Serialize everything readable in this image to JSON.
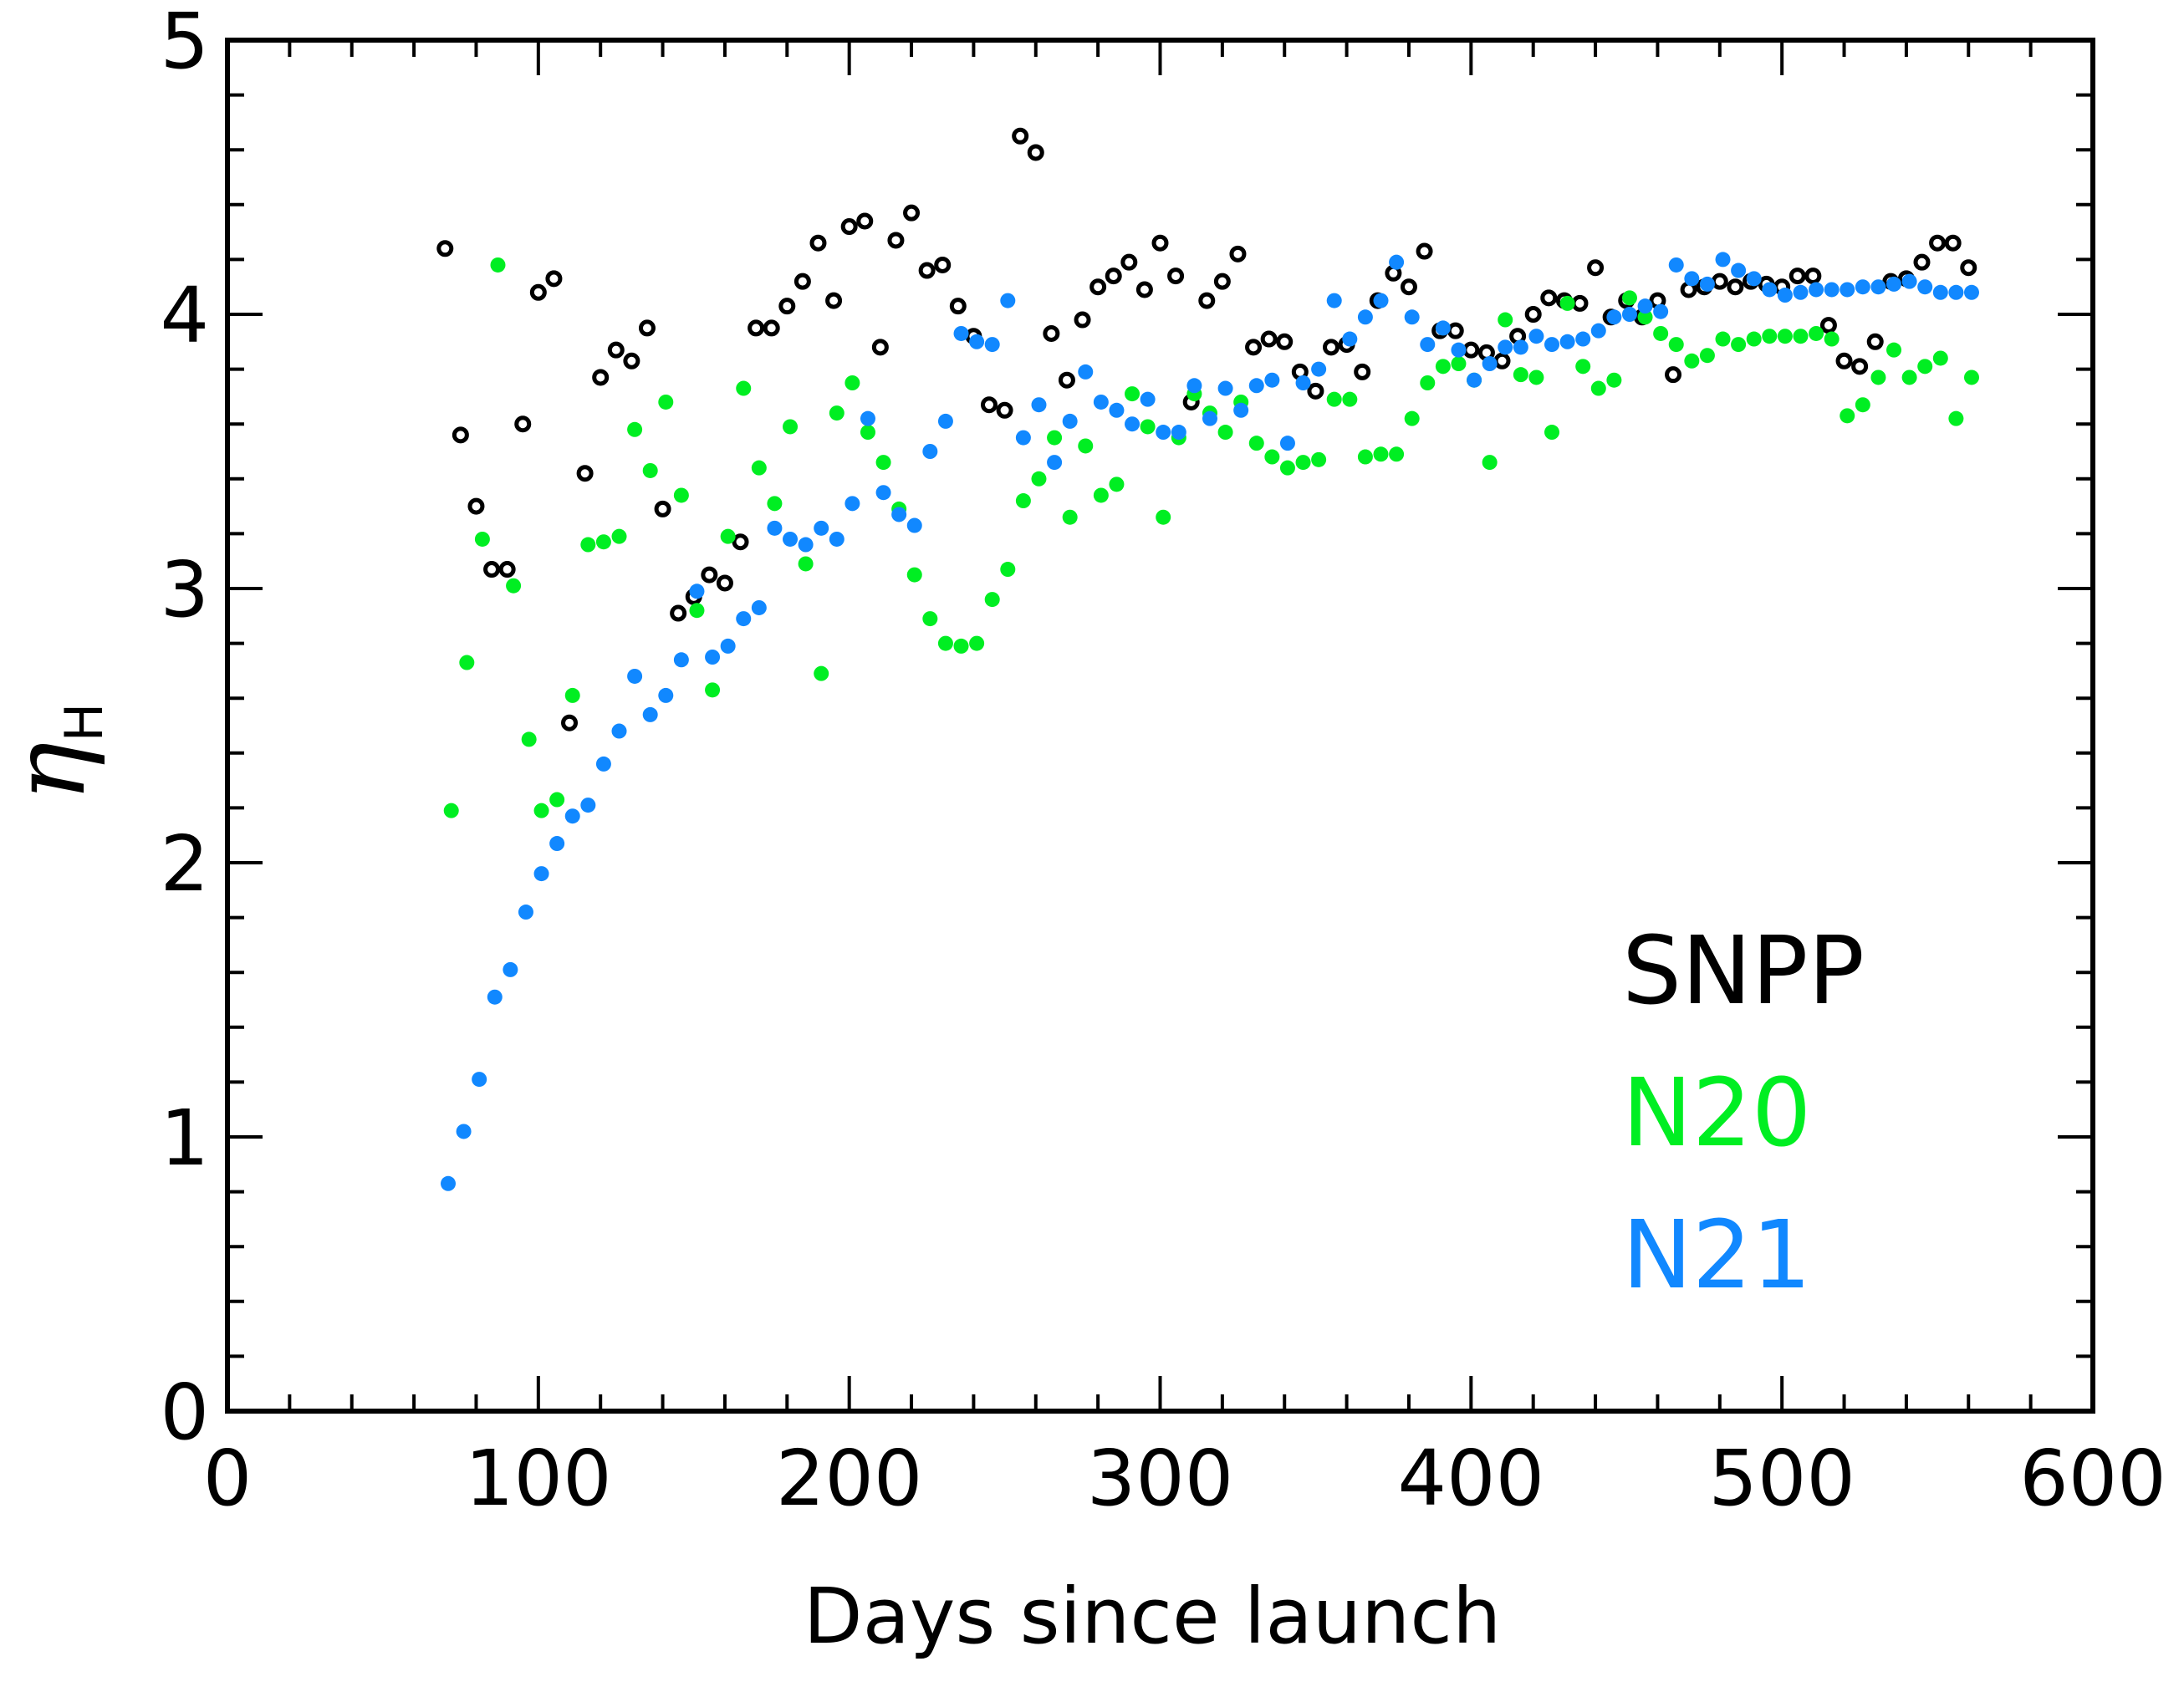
{
  "chart_data": {
    "type": "scatter",
    "title": "",
    "xlabel": "Days since launch",
    "ylabel": {
      "symbol": "η",
      "subscript": "H"
    },
    "xlim": [
      0,
      600
    ],
    "ylim": [
      0,
      5
    ],
    "xticks": [
      "0",
      "100",
      "200",
      "300",
      "400",
      "500",
      "600"
    ],
    "yticks": [
      "0",
      "1",
      "2",
      "3",
      "4",
      "5"
    ],
    "legend_position": "lower-right",
    "series": [
      {
        "name": "SNPP",
        "color": "#000000",
        "marker": "open-circle",
        "x": [
          70,
          75,
          80,
          85,
          90,
          95,
          100,
          105,
          110,
          115,
          120,
          125,
          130,
          135,
          140,
          145,
          150,
          155,
          160,
          165,
          170,
          175,
          180,
          185,
          190,
          195,
          200,
          205,
          210,
          215,
          220,
          225,
          230,
          235,
          240,
          245,
          250,
          255,
          260,
          265,
          270,
          275,
          280,
          285,
          290,
          295,
          300,
          305,
          310,
          315,
          320,
          325,
          330,
          335,
          340,
          345,
          350,
          355,
          360,
          365,
          370,
          375,
          380,
          385,
          390,
          395,
          400,
          405,
          410,
          415,
          420,
          425,
          430,
          435,
          440,
          445,
          450,
          455,
          460,
          465,
          470,
          475,
          480,
          485,
          490,
          495,
          500,
          505,
          510,
          515,
          520,
          525,
          530,
          535,
          540,
          545,
          550,
          555,
          560
        ],
        "y": [
          4.24,
          3.56,
          3.3,
          3.07,
          3.07,
          3.6,
          4.08,
          4.13,
          2.51,
          3.42,
          3.77,
          3.87,
          3.83,
          3.95,
          3.29,
          2.91,
          2.97,
          3.05,
          3.02,
          3.17,
          3.95,
          3.95,
          4.03,
          4.12,
          4.26,
          4.05,
          4.32,
          4.34,
          3.88,
          4.27,
          4.37,
          4.16,
          4.18,
          4.03,
          3.92,
          3.67,
          3.65,
          4.65,
          4.59,
          3.93,
          3.76,
          3.98,
          4.1,
          4.14,
          4.19,
          4.09,
          4.26,
          4.14,
          3.68,
          4.05,
          4.12,
          4.22,
          3.88,
          3.91,
          3.9,
          3.79,
          3.72,
          3.88,
          3.89,
          3.79,
          4.05,
          4.15,
          4.1,
          4.23,
          3.94,
          3.94,
          3.87,
          3.86,
          3.83,
          3.92,
          4.0,
          4.06,
          4.05,
          4.04,
          4.17,
          3.99,
          4.05,
          3.99,
          4.05,
          3.78,
          4.09,
          4.1,
          4.12,
          4.1,
          4.12,
          4.11,
          4.1,
          4.14,
          4.14,
          3.96,
          3.83,
          3.81,
          3.9,
          4.12,
          4.13,
          4.19,
          4.26,
          4.26,
          4.17
        ]
      },
      {
        "name": "N20",
        "color": "#00ee22",
        "marker": "filled-circle",
        "x": [
          72,
          77,
          82,
          87,
          92,
          97,
          101,
          106,
          111,
          116,
          121,
          126,
          131,
          136,
          141,
          146,
          151,
          156,
          161,
          166,
          171,
          176,
          181,
          186,
          191,
          196,
          201,
          206,
          211,
          216,
          221,
          226,
          231,
          236,
          241,
          246,
          251,
          256,
          261,
          266,
          271,
          276,
          281,
          286,
          291,
          296,
          301,
          306,
          311,
          316,
          321,
          326,
          331,
          336,
          341,
          346,
          351,
          356,
          361,
          366,
          371,
          376,
          381,
          386,
          391,
          396,
          401,
          406,
          411,
          416,
          421,
          426,
          431,
          436,
          441,
          446,
          451,
          456,
          461,
          466,
          471,
          476,
          481,
          486,
          491,
          496,
          501,
          506,
          511,
          516,
          521,
          526,
          531,
          536,
          541,
          546,
          551,
          556,
          561
        ],
        "y": [
          2.19,
          2.73,
          3.18,
          4.18,
          3.01,
          2.45,
          2.19,
          2.23,
          2.61,
          3.16,
          3.17,
          3.19,
          3.58,
          3.43,
          3.68,
          3.34,
          2.92,
          2.63,
          3.19,
          3.73,
          3.44,
          3.31,
          3.59,
          3.09,
          2.69,
          3.64,
          3.75,
          3.57,
          3.46,
          3.29,
          3.05,
          2.89,
          2.8,
          2.79,
          2.8,
          2.96,
          3.07,
          3.32,
          3.4,
          3.55,
          3.26,
          3.52,
          3.34,
          3.38,
          3.71,
          3.59,
          3.26,
          3.55,
          3.71,
          3.64,
          3.57,
          3.68,
          3.53,
          3.48,
          3.44,
          3.46,
          3.47,
          3.69,
          3.69,
          3.48,
          3.49,
          3.49,
          3.62,
          3.75,
          3.81,
          3.82,
          3.76,
          3.46,
          3.98,
          3.78,
          3.77,
          3.57,
          4.04,
          3.81,
          3.73,
          3.76,
          4.06,
          3.99,
          3.93,
          3.89,
          3.83,
          3.85,
          3.91,
          3.89,
          3.91,
          3.92,
          3.92,
          3.92,
          3.93,
          3.91,
          3.63,
          3.67,
          3.77,
          3.87,
          3.77,
          3.81,
          3.84,
          3.62,
          3.77
        ]
      },
      {
        "name": "N21",
        "color": "#1188ff",
        "marker": "filled-circle",
        "x": [
          71,
          76,
          81,
          86,
          91,
          96,
          101,
          106,
          111,
          116,
          121,
          126,
          131,
          136,
          141,
          146,
          151,
          156,
          161,
          166,
          171,
          176,
          181,
          186,
          191,
          196,
          201,
          206,
          211,
          216,
          221,
          226,
          231,
          236,
          241,
          246,
          251,
          256,
          261,
          266,
          271,
          276,
          281,
          286,
          291,
          296,
          301,
          306,
          311,
          316,
          321,
          326,
          331,
          336,
          341,
          346,
          351,
          356,
          361,
          366,
          371,
          376,
          381,
          386,
          391,
          396,
          401,
          406,
          411,
          416,
          421,
          426,
          431,
          436,
          441,
          446,
          451,
          456,
          461,
          466,
          471,
          476,
          481,
          486,
          491,
          496,
          501,
          506,
          511,
          516,
          521,
          526,
          531,
          536,
          541,
          546,
          551,
          556,
          561
        ],
        "y": [
          0.83,
          1.02,
          1.21,
          1.51,
          1.61,
          1.82,
          1.96,
          2.07,
          2.17,
          2.21,
          2.36,
          2.48,
          2.68,
          2.54,
          2.61,
          2.74,
          2.99,
          2.75,
          2.79,
          2.89,
          2.93,
          3.22,
          3.18,
          3.16,
          3.22,
          3.18,
          3.31,
          3.62,
          3.35,
          3.27,
          3.23,
          3.5,
          3.61,
          3.93,
          3.9,
          3.89,
          4.05,
          3.55,
          3.67,
          3.46,
          3.61,
          3.79,
          3.68,
          3.65,
          3.6,
          3.69,
          3.57,
          3.57,
          3.74,
          3.62,
          3.73,
          3.65,
          3.74,
          3.76,
          3.53,
          3.75,
          3.8,
          4.05,
          3.91,
          3.99,
          4.05,
          4.19,
          3.99,
          3.89,
          3.95,
          3.87,
          3.76,
          3.82,
          3.88,
          3.88,
          3.92,
          3.89,
          3.9,
          3.91,
          3.94,
          3.99,
          4.0,
          4.03,
          4.01,
          4.18,
          4.13,
          4.11,
          4.2,
          4.16,
          4.13,
          4.09,
          4.07,
          4.08,
          4.09,
          4.09,
          4.09,
          4.1,
          4.1,
          4.11,
          4.12,
          4.1,
          4.08,
          4.08,
          4.08
        ]
      }
    ]
  }
}
